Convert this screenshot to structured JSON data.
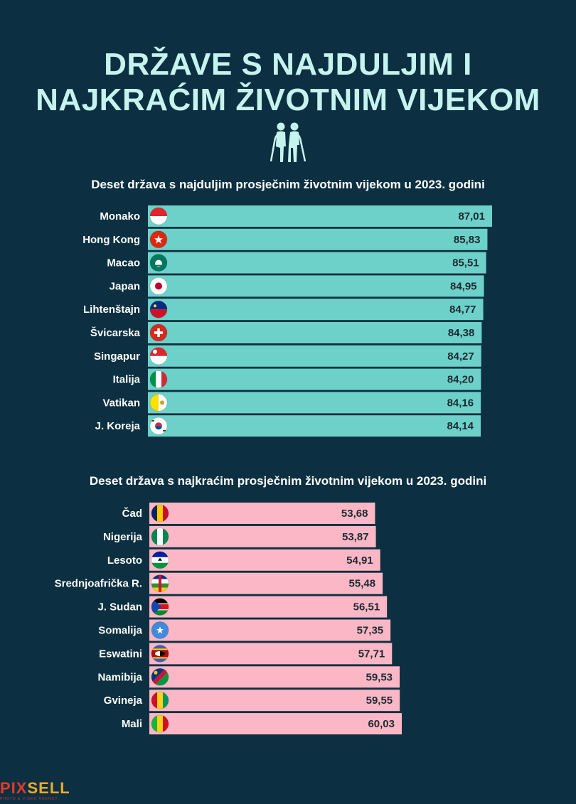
{
  "title": {
    "line1": "DRŽAVE S NAJDULJIM I",
    "line2": "NAJKRAĆIM ŽIVOTNIM VIJEKOM"
  },
  "icon": "elderly-couple-icon",
  "colors": {
    "background": "#0c3041",
    "title": "#c7f3ee",
    "top_bars": "#6dd1ca",
    "bottom_bars": "#fbb7c5",
    "text": "#ffffff",
    "value_text": "#1b2a33"
  },
  "chart_data": [
    {
      "type": "bar",
      "orientation": "horizontal",
      "title": "Deset država s najduljim prosječnim životnim vijekom u 2023. godini",
      "categories": [
        "Monako",
        "Hong Kong",
        "Macao",
        "Japan",
        "Lihtenštajn",
        "Švicarska",
        "Singapur",
        "Italija",
        "Vatikan",
        "J. Koreja"
      ],
      "values": [
        87.01,
        85.83,
        85.51,
        84.95,
        84.77,
        84.38,
        84.27,
        84.2,
        84.16,
        84.14
      ],
      "value_labels": [
        "87,01",
        "85,83",
        "85,51",
        "84,95",
        "84,77",
        "84,38",
        "84,27",
        "84,20",
        "84,16",
        "84,14"
      ],
      "flags": [
        "monaco-flag-icon",
        "hong-kong-flag-icon",
        "macao-flag-icon",
        "japan-flag-icon",
        "liechtenstein-flag-icon",
        "switzerland-flag-icon",
        "singapore-flag-icon",
        "italy-flag-icon",
        "vatican-flag-icon",
        "south-korea-flag-icon"
      ],
      "color": "#6dd1ca",
      "grid": false
    },
    {
      "type": "bar",
      "orientation": "horizontal",
      "title": "Deset država s najkraćim prosječnim životnim vijekom u 2023. godini",
      "categories": [
        "Čad",
        "Nigerija",
        "Lesoto",
        "Srednjoafrička R.",
        "J. Sudan",
        "Somalija",
        "Eswatini",
        "Namibija",
        "Gvineja",
        "Mali"
      ],
      "values": [
        53.68,
        53.87,
        54.91,
        55.48,
        56.51,
        57.35,
        57.71,
        59.53,
        59.55,
        60.03
      ],
      "value_labels": [
        "53,68",
        "53,87",
        "54,91",
        "55,48",
        "56,51",
        "57,35",
        "57,71",
        "59,53",
        "59,55",
        "60,03"
      ],
      "flags": [
        "chad-flag-icon",
        "nigeria-flag-icon",
        "lesotho-flag-icon",
        "central-african-republic-flag-icon",
        "south-sudan-flag-icon",
        "somalia-flag-icon",
        "eswatini-flag-icon",
        "namibia-flag-icon",
        "guinea-flag-icon",
        "mali-flag-icon"
      ],
      "color": "#fbb7c5",
      "grid": false
    }
  ],
  "logo": {
    "text_main": "PIX",
    "text_accent": "SELL",
    "tagline": "PHOTO & VIDEO AGENCY"
  }
}
